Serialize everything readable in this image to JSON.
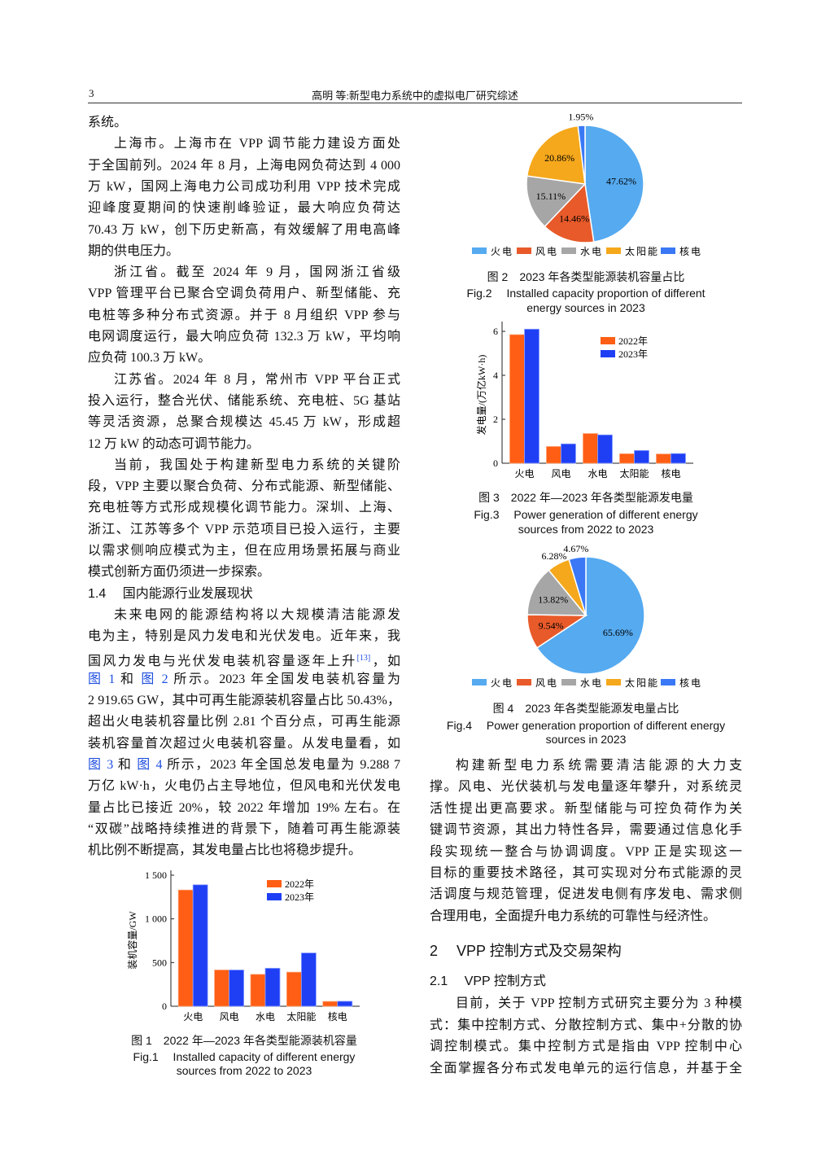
{
  "header": {
    "page_number": "3",
    "running_title": "高明 等:新型电力系统中的虚拟电厂研究综述"
  },
  "colors": {
    "orange_2022": "#ff5e14",
    "blue_2023": "#1f3ff5",
    "火电": "#55aaf0",
    "风电": "#e85a2a",
    "水电": "#a6a6a6",
    "太阳能": "#f5a81c",
    "核电": "#3a78f5",
    "link": "#1f4fe0"
  },
  "left_column": {
    "lines": [
      {
        "t": "系统。",
        "e": true
      },
      {
        "t": "上海市。上海市在 VPP 调节能力建设方面处",
        "i": true
      },
      {
        "t": "于全国前列。2024 年 8 月，上海电网负荷达到 4 000"
      },
      {
        "t": "万 kW，国网上海电力公司成功利用 VPP 技术完成"
      },
      {
        "t": "迎峰度夏期间的快速削峰验证，最大响应负荷达"
      },
      {
        "t": "70.43 万 kW，创下历史新高，有效缓解了用电高峰"
      },
      {
        "t": "期的供电压力。",
        "e": true
      },
      {
        "t": "浙江省。截至 2024 年 9 月，国网浙江省级",
        "i": true
      },
      {
        "t": "VPP 管理平台已聚合空调负荷用户、新型储能、充"
      },
      {
        "t": "电桩等多种分布式资源。并于 8 月组织 VPP 参与"
      },
      {
        "t": "电网调度运行，最大响应负荷 132.3 万 kW，平均响"
      },
      {
        "t": "应负荷 100.3 万 kW。",
        "e": true
      },
      {
        "t": "江苏省。2024 年 8 月，常州市 VPP 平台正式",
        "i": true
      },
      {
        "t": "投入运行，整合光伏、储能系统、充电桩、5G 基站"
      },
      {
        "t": "等灵活资源，总聚合规模达 45.45 万 kW，形成超"
      },
      {
        "t": "12 万 kW 的动态可调节能力。",
        "e": true
      },
      {
        "t": "当前，我国处于构建新型电力系统的关键阶",
        "i": true
      },
      {
        "t": "段，VPP 主要以聚合负荷、分布式能源、新型储能、"
      },
      {
        "t": "充电桩等方式形成规模化调节能力。深圳、上海、"
      },
      {
        "t": "浙江、江苏等多个 VPP 示范项目已投入运行，主要"
      },
      {
        "t": "以需求侧响应模式为主，但在应用场景拓展与商业"
      },
      {
        "t": "模式创新方面仍须进一步探索。",
        "e": true
      },
      {
        "t": "1.4　 国内能源行业发展现状",
        "h": true
      },
      {
        "t": "未来电网的能源结构将以大规模清洁能源发",
        "i": true
      },
      {
        "t": "电为主，特别是风力发电和光伏发电。近年来，我"
      },
      {
        "s": [
          {
            "t": "国风力发电与光伏发电装机容量逐年上升"
          },
          {
            "t": "[13]",
            "k": "sup"
          },
          {
            "t": "，如"
          }
        ]
      },
      {
        "s": [
          {
            "t": "图 1",
            "k": "link"
          },
          {
            "t": " 和 "
          },
          {
            "t": "图 2",
            "k": "link"
          },
          {
            "t": " 所示。2023 年全国发电装机容量为"
          }
        ]
      },
      {
        "t": "2 919.65 GW，其中可再生能源装机容量占比 50.43%，"
      },
      {
        "t": "超出火电装机容量比例 2.81 个百分点，可再生能源"
      },
      {
        "t": "装机容量首次超过火电装机容量。从发电量看，如"
      },
      {
        "s": [
          {
            "t": "图 3",
            "k": "link"
          },
          {
            "t": " 和 "
          },
          {
            "t": "图 4",
            "k": "link"
          },
          {
            "t": " 所示，2023 年全国总发电量为 9.288 7"
          }
        ]
      },
      {
        "t": "万亿 kW·h，火电仍占主导地位，但风电和光伏发电"
      },
      {
        "t": "量占比已接近 20%，较 2022 年增加 19% 左右。在"
      },
      {
        "t": "“双碳”战略持续推进的背景下，随着可再生能源装"
      },
      {
        "t": "机比例不断提高，其发电量占比也将稳步提升。",
        "e": true
      }
    ]
  },
  "right_column": {
    "lines": [
      {
        "t": "构建新型电力系统需要清洁能源的大力支",
        "i": true
      },
      {
        "t": "撑。风电、光伏装机与发电量逐年攀升，对系统灵"
      },
      {
        "t": "活性提出更高要求。新型储能与可控负荷作为关"
      },
      {
        "t": "键调节资源，其出力特性各异，需要通过信息化手"
      },
      {
        "t": "段实现统一整合与协调调度。VPP 正是实现这一"
      },
      {
        "t": "目标的重要技术路径，其可实现对分布式能源的灵"
      },
      {
        "t": "活调度与规范管理，促进发电侧有序发电、需求侧"
      },
      {
        "t": "合理用电，全面提升电力系统的可靠性与经济性。",
        "e": true
      },
      {
        "t": "2　 VPP 控制方式及交易架构",
        "h2": true
      },
      {
        "t": "2.1　 VPP 控制方式",
        "h": true
      },
      {
        "t": "目前，关于 VPP 控制方式研究主要分为 3 种模",
        "i": true
      },
      {
        "t": "式：集中控制方式、分散控制方式、集中+分散的协"
      },
      {
        "t": "调控制模式。集中控制方式是指由 VPP 控制中心"
      },
      {
        "t": "全面掌握各分布式发电单元的运行信息，并基于全"
      }
    ]
  },
  "chart_data": [
    {
      "id": "fig1",
      "type": "bar",
      "caption_cn": "图 1　2022 年—2023 年各类型能源装机容量",
      "caption_en_1": "Fig.1　 Installed capacity of different energy",
      "caption_en_2": "sources from 2022 to 2023",
      "ylabel": "装机容量/GW",
      "categories": [
        "火电",
        "风电",
        "水电",
        "太阳能",
        "核电"
      ],
      "yticks": [
        "0",
        "500",
        "1 000",
        "1 500"
      ],
      "ylim": [
        0,
        1500
      ],
      "legend_placement": "top-right",
      "series": [
        {
          "name": "2022年",
          "values": [
            1330,
            415,
            365,
            390,
            55
          ]
        },
        {
          "name": "2023年",
          "values": [
            1390,
            415,
            435,
            610,
            57
          ]
        }
      ]
    },
    {
      "id": "fig2",
      "type": "pie",
      "caption_cn": "图 2　2023 年各类型能源装机容量占比",
      "caption_en_1": "Fig.2　 Installed capacity proportion of different",
      "caption_en_2": "energy sources in 2023",
      "categories": [
        "火电",
        "风电",
        "水电",
        "太阳能",
        "核电"
      ],
      "values": [
        47.62,
        14.46,
        15.11,
        20.86,
        1.95
      ],
      "labels": [
        "47.62%",
        "14.46%",
        "15.11%",
        "20.86%",
        "1.95%"
      ],
      "legend_placement": "bottom"
    },
    {
      "id": "fig3",
      "type": "bar",
      "caption_cn": "图 3　2022 年—2023 年各类型能源发电量",
      "caption_en_1": "Fig.3　 Power generation of different energy",
      "caption_en_2": "sources from 2022 to 2023",
      "ylabel": "发电量/(万亿kW·h)",
      "categories": [
        "火电",
        "风电",
        "水电",
        "太阳能",
        "核电"
      ],
      "yticks": [
        "0",
        "2",
        "4",
        "6"
      ],
      "ylim": [
        0,
        6.4
      ],
      "legend_placement": "top-right",
      "series": [
        {
          "name": "2022年",
          "values": [
            5.85,
            0.76,
            1.35,
            0.43,
            0.42
          ]
        },
        {
          "name": "2023年",
          "values": [
            6.1,
            0.88,
            1.29,
            0.58,
            0.44
          ]
        }
      ]
    },
    {
      "id": "fig4",
      "type": "pie",
      "caption_cn": "图 4　2023 年各类型能源发电量占比",
      "caption_en_1": "Fig.4　 Power generation proportion of different energy",
      "caption_en_2": "sources in 2023",
      "categories": [
        "火电",
        "风电",
        "水电",
        "太阳能",
        "核电"
      ],
      "values": [
        65.69,
        9.54,
        13.82,
        6.28,
        4.67
      ],
      "labels": [
        "65.69%",
        "9.54%",
        "13.82%",
        "6.28%",
        "4.67%"
      ],
      "legend_placement": "bottom"
    }
  ]
}
